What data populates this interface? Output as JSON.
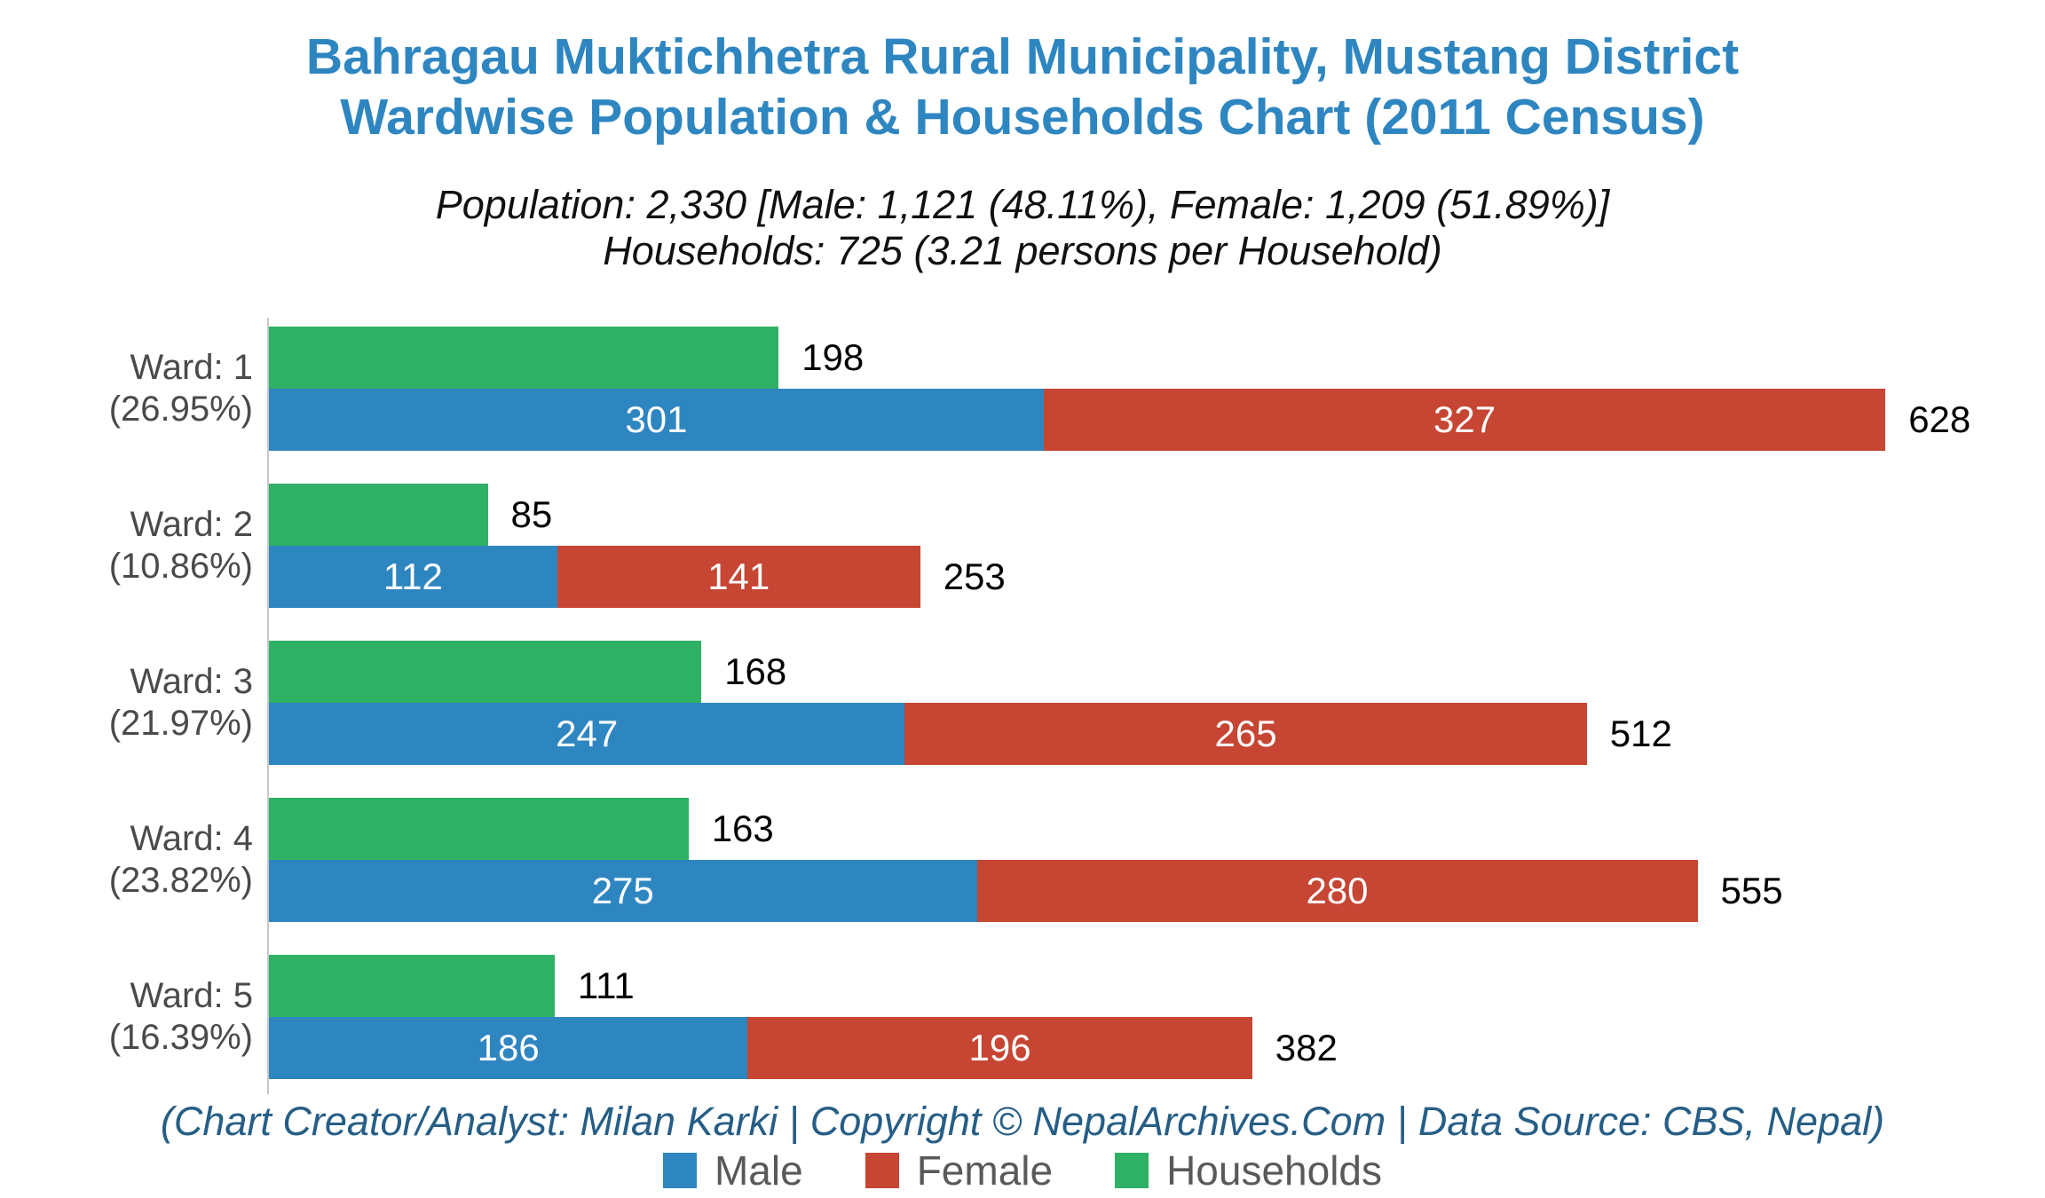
{
  "title": {
    "line1": "Bahragau Muktichhetra Rural Municipality, Mustang District",
    "line2": "Wardwise Population & Households Chart (2011 Census)"
  },
  "subtitle": {
    "line1": "Population: 2,330 [Male: 1,121 (48.11%), Female: 1,209 (51.89%)]",
    "line2": "Households: 725 (3.21 persons per Household)"
  },
  "footer": "(Chart Creator/Analyst: Milan Karki | Copyright © NepalArchives.Com | Data Source: CBS, Nepal)",
  "colors": {
    "male": "#2E86C1",
    "female": "#C64533",
    "households": "#2EB164",
    "title": "#2E86C1",
    "footer": "#265E86"
  },
  "legend": {
    "items": [
      {
        "key": "male",
        "label": "Male"
      },
      {
        "key": "female",
        "label": "Female"
      },
      {
        "key": "households",
        "label": "Households"
      }
    ]
  },
  "chart_data": {
    "type": "bar",
    "orientation": "horizontal",
    "stacked_series": [
      "Male",
      "Female"
    ],
    "separate_series": [
      "Households"
    ],
    "categories": [
      "Ward: 1 (26.95%)",
      "Ward: 2 (10.86%)",
      "Ward: 3 (21.97%)",
      "Ward: 4 (23.82%)",
      "Ward: 5 (16.39%)"
    ],
    "series": [
      {
        "name": "Male",
        "values": [
          301,
          112,
          247,
          275,
          186
        ]
      },
      {
        "name": "Female",
        "values": [
          327,
          141,
          265,
          280,
          196
        ]
      },
      {
        "name": "Households",
        "values": [
          198,
          85,
          168,
          163,
          111
        ]
      }
    ],
    "totals": [
      628,
      253,
      512,
      555,
      382
    ],
    "xlim": [
      0,
      650
    ],
    "grid": false,
    "legend_position": "bottom",
    "wards": [
      {
        "label1": "Ward: 1",
        "label2": "(26.95%)",
        "households": 198,
        "male": 301,
        "female": 327,
        "total": 628
      },
      {
        "label1": "Ward: 2",
        "label2": "(10.86%)",
        "households": 85,
        "male": 112,
        "female": 141,
        "total": 253
      },
      {
        "label1": "Ward: 3",
        "label2": "(21.97%)",
        "households": 168,
        "male": 247,
        "female": 265,
        "total": 512
      },
      {
        "label1": "Ward: 4",
        "label2": "(23.82%)",
        "households": 163,
        "male": 275,
        "female": 280,
        "total": 555
      },
      {
        "label1": "Ward: 5",
        "label2": "(16.39%)",
        "households": 111,
        "male": 186,
        "female": 196,
        "total": 382
      }
    ]
  }
}
